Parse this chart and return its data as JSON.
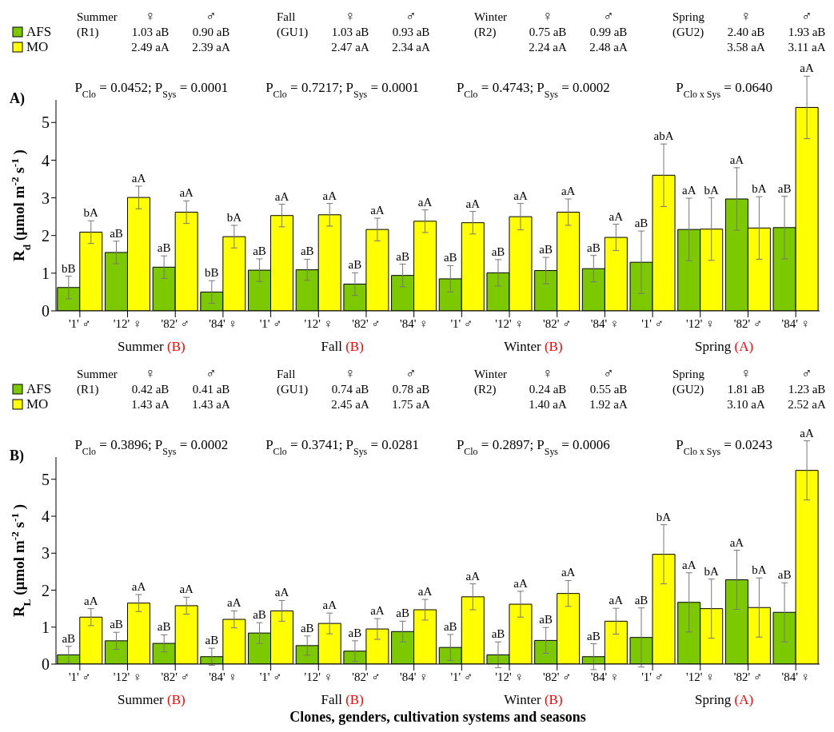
{
  "chart_data": [
    {
      "type": "bar",
      "title": "A)",
      "ylabel": "R$_{d}$ (µmol m$^{-2}$ s$^{-1}$)",
      "legend": "top left",
      "categories": [
        "'1' ♂",
        "'12' ♀",
        "'82' ♂",
        "'84' ♀",
        "'1' ♂",
        "'12' ♀",
        "'82' ♂",
        "'84' ♀",
        "'1' ♂",
        "'12' ♀",
        "'82' ♂",
        "'84' ♀",
        "'1' ♂",
        "'12' ♀",
        "'82' ♂",
        "'84' ♀"
      ],
      "ylim": [
        0,
        5.6
      ],
      "yticks": [
        0,
        1,
        2,
        3,
        4,
        5
      ],
      "series": [
        {
          "name": "AFS",
          "color": "#7dc900",
          "values": [
            0.62,
            1.55,
            1.16,
            0.5,
            1.08,
            1.09,
            0.71,
            0.94,
            0.85,
            1.01,
            1.07,
            1.12,
            1.29,
            2.16,
            2.97,
            2.21
          ],
          "errors": [
            0.3,
            0.3,
            0.3,
            0.3,
            0.3,
            0.28,
            0.3,
            0.3,
            0.35,
            0.35,
            0.35,
            0.35,
            0.83,
            0.83,
            0.83,
            0.83
          ],
          "value_labels": [
            "bB",
            "aB",
            "aB",
            "bB",
            "aB",
            "aB",
            "aB",
            "aB",
            "aB",
            "aB",
            "aB",
            "aB",
            "aB",
            "aA",
            "aA",
            "aB"
          ]
        },
        {
          "name": "MO",
          "color": "#ffff00",
          "values": [
            2.09,
            3.01,
            2.62,
            1.97,
            2.53,
            2.55,
            2.16,
            2.38,
            2.34,
            2.5,
            2.62,
            1.95,
            3.6,
            2.17,
            2.2,
            5.4
          ],
          "errors": [
            0.3,
            0.3,
            0.3,
            0.3,
            0.3,
            0.3,
            0.3,
            0.3,
            0.3,
            0.35,
            0.35,
            0.35,
            0.83,
            0.83,
            0.83,
            0.83
          ],
          "value_labels": [
            "bA",
            "aA",
            "aA",
            "bA",
            "aA",
            "aA",
            "aA",
            "aA",
            "aA",
            "aA",
            "aA",
            "aA",
            "abA",
            "bA",
            "bA",
            "aA"
          ]
        }
      ],
      "annotations": [
        "P$_{Clo}$ = 0.0452; P$_{Sys}$ = 0.0001",
        "P$_{Clo}$ = 0.7217; P$_{Sys}$ = 0.0001",
        "P$_{Clo}$ = 0.4743; P$_{Sys}$ = 0.0002",
        "P$_{Clo x Sys}$ = 0.0640",
        "Summer",
        "(R1)",
        "♀",
        "♂",
        "1.03 aB",
        "0.90 aB",
        "2.49 aA",
        "2.39 aA",
        "Fall",
        "(GU1)",
        "♀",
        "♂",
        "1.03 aB",
        "0.93 aB",
        "2.47 aA",
        "2.34 aA",
        "Winter",
        "(R2)",
        "♀",
        "♂",
        "0.75 aB",
        "0.99 aB",
        "2.24 aA",
        "2.48 aA",
        "Spring",
        "(GU2)",
        "♀",
        "♂",
        "2.40 aB",
        "1.93 aB",
        "3.58 aA",
        "3.11 aA",
        "Summer",
        "(B)",
        "Fall",
        "(B)",
        "Winter",
        "(B)",
        "Spring",
        "(A)"
      ]
    },
    {
      "type": "bar",
      "title": "B)",
      "ylabel": "R$_{L}$ (µmol m$^{-2}$ s$^{-1}$)",
      "xlabel": "Clones, genders, cultivation systems and seasons",
      "legend": "top left",
      "categories": [
        "'1' ♂",
        "'12' ♀",
        "'82' ♂",
        "'84' ♀",
        "'1' ♂",
        "'12' ♀",
        "'82' ♂",
        "'84' ♀",
        "'1' ♂",
        "'12' ♀",
        "'82' ♂",
        "'84' ♀",
        "'1' ♂",
        "'12' ♀",
        "'82' ♂",
        "'84' ♀"
      ],
      "ylim": [
        0,
        5.6
      ],
      "yticks": [
        0,
        1,
        2,
        3,
        4,
        5
      ],
      "series": [
        {
          "name": "AFS",
          "color": "#7dc900",
          "values": [
            0.25,
            0.63,
            0.56,
            0.2,
            0.84,
            0.5,
            0.35,
            0.88,
            0.45,
            0.25,
            0.64,
            0.2,
            0.72,
            1.67,
            2.28,
            1.4
          ],
          "errors": [
            0.23,
            0.23,
            0.23,
            0.23,
            0.28,
            0.26,
            0.28,
            0.28,
            0.35,
            0.35,
            0.35,
            0.35,
            0.8,
            0.8,
            0.8,
            0.8
          ],
          "value_labels": [
            "aB",
            "aB",
            "aB",
            "aB",
            "aB",
            "aB",
            "aB",
            "aB",
            "aB",
            "aB",
            "aB",
            "aB",
            "aB",
            "aA",
            "aA",
            "aB"
          ]
        },
        {
          "name": "MO",
          "color": "#ffff00",
          "values": [
            1.27,
            1.65,
            1.58,
            1.21,
            1.44,
            1.1,
            0.95,
            1.47,
            1.82,
            1.62,
            1.91,
            1.16,
            2.97,
            1.5,
            1.53,
            5.24
          ],
          "errors": [
            0.23,
            0.23,
            0.23,
            0.23,
            0.28,
            0.28,
            0.28,
            0.28,
            0.35,
            0.35,
            0.35,
            0.35,
            0.8,
            0.8,
            0.8,
            0.8
          ],
          "value_labels": [
            "aA",
            "aA",
            "aA",
            "aA",
            "aA",
            "aA",
            "aA",
            "aA",
            "aA",
            "aA",
            "aA",
            "aA",
            "bA",
            "bA",
            "bA",
            "aA"
          ]
        }
      ],
      "annotations": [
        "P$_{Clo}$ = 0.3896; P$_{Sys}$ = 0.0002",
        "P$_{Clo}$ = 0.3741; P$_{Sys}$ = 0.0281",
        "P$_{Clo}$ = 0.2897; P$_{Sys}$ = 0.0006",
        "P$_{Clo x Sys}$ = 0.0243",
        "Summer",
        "(R1)",
        "♀",
        "♂",
        "0.42 aB",
        "0.41 aB",
        "1.43 aA",
        "1.43 aA",
        "Fall",
        "(GU1)",
        "♀",
        "♂",
        "0.74 aB",
        "0.78 aB",
        "2.45 aA",
        "1.75 aA",
        "Winter",
        "(R2)",
        "♀",
        "♂",
        "0.24 aB",
        "0.55 aB",
        "1.40 aA",
        "1.92 aA",
        "Spring",
        "(GU2)",
        "♀",
        "♂",
        "1.81 aB",
        "1.23 aB",
        "3.10 aA",
        "2.52 aA",
        "Summer",
        "(B)",
        "Fall",
        "(B)",
        "Winter",
        "(B)",
        "Spring",
        "(A)"
      ]
    }
  ]
}
